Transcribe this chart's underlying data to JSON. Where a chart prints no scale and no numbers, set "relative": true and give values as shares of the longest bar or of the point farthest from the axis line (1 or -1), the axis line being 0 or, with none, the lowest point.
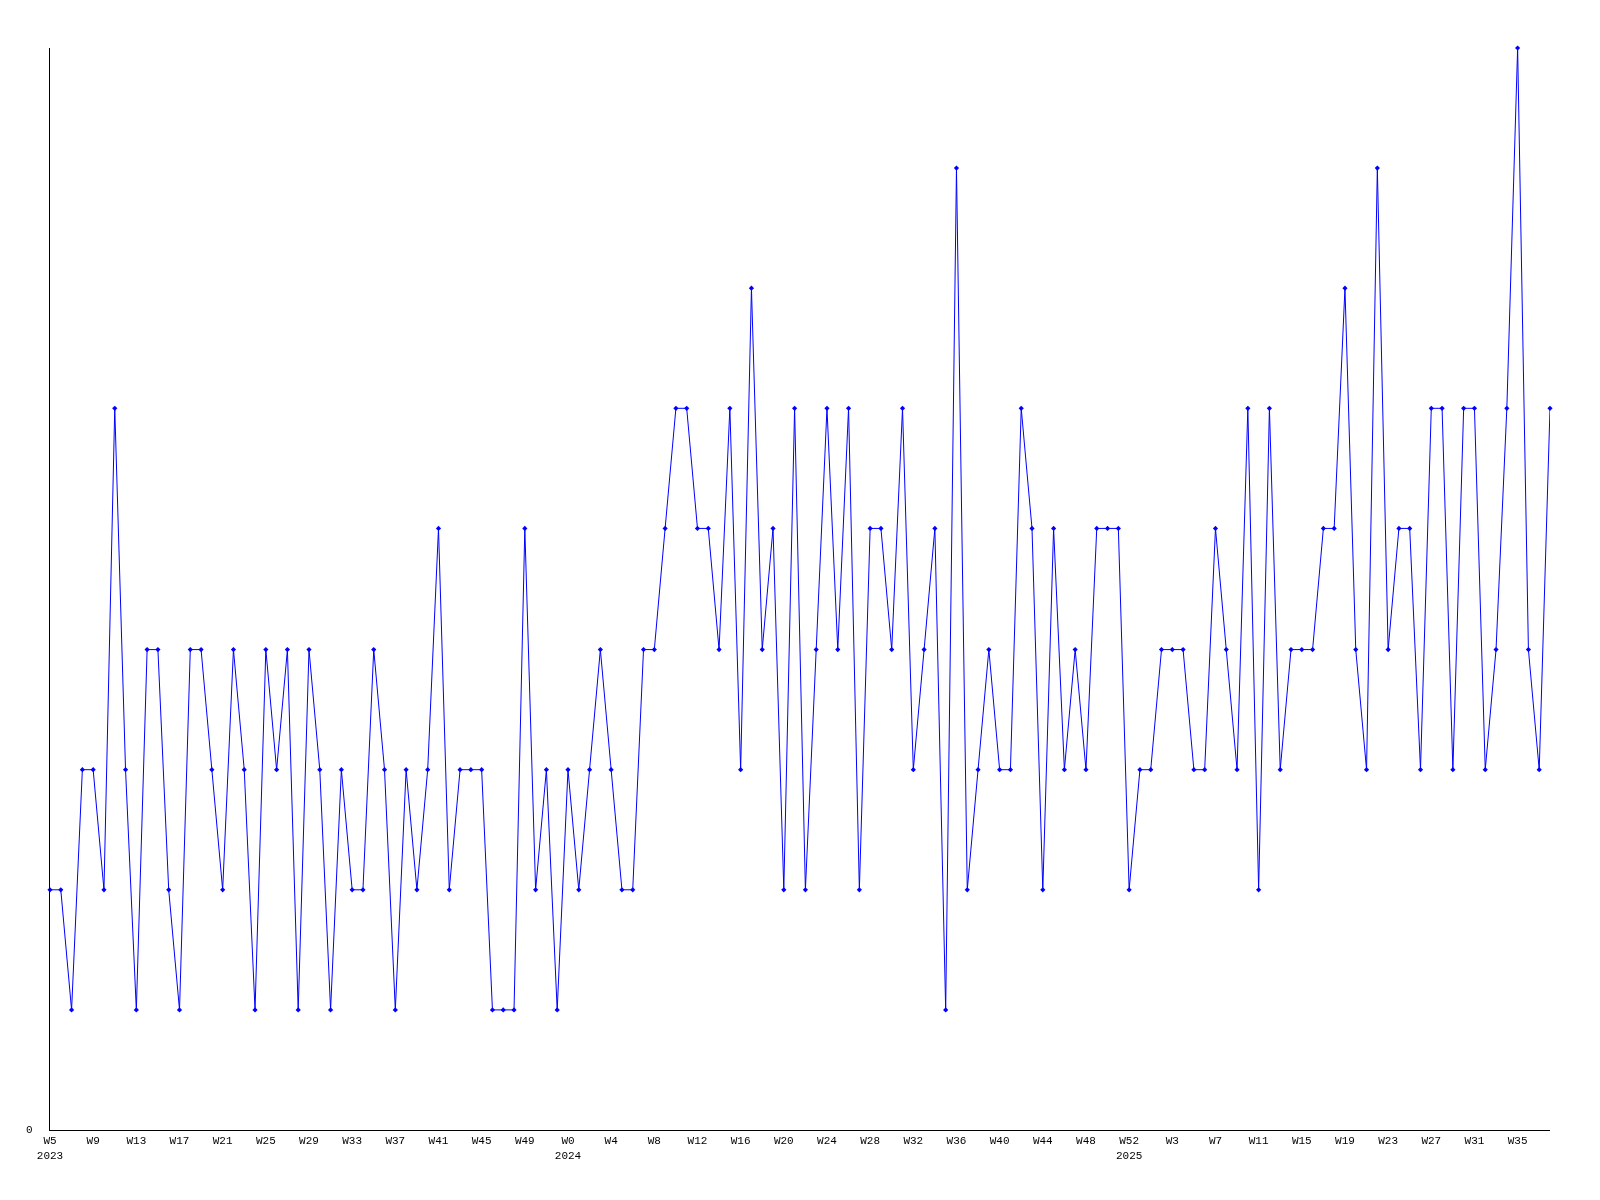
{
  "chart_data": {
    "type": "line",
    "relative": true,
    "marker": "diamond",
    "line_style": "solid",
    "annotations": [
      "0"
    ],
    "categories": [
      "W5\n2023",
      null,
      null,
      null,
      "W9",
      null,
      null,
      null,
      "W13",
      null,
      null,
      null,
      "W17",
      null,
      null,
      null,
      "W21",
      null,
      null,
      null,
      "W25",
      null,
      null,
      null,
      "W29",
      null,
      null,
      null,
      "W33",
      null,
      null,
      null,
      "W37",
      null,
      null,
      null,
      "W41",
      null,
      null,
      null,
      "W45",
      null,
      null,
      null,
      "W49",
      null,
      null,
      null,
      "W0\n2024",
      null,
      null,
      null,
      "W4",
      null,
      null,
      null,
      "W8",
      null,
      null,
      null,
      "W12",
      null,
      null,
      null,
      "W16",
      null,
      null,
      null,
      "W20",
      null,
      null,
      null,
      "W24",
      null,
      null,
      null,
      "W28",
      null,
      null,
      null,
      "W32",
      null,
      null,
      null,
      "W36",
      null,
      null,
      null,
      "W40",
      null,
      null,
      null,
      "W44",
      null,
      null,
      null,
      "W48",
      null,
      null,
      null,
      "W52\n2025",
      null,
      null,
      null,
      "W3",
      null,
      null,
      null,
      "W7",
      null,
      null,
      null,
      "W11",
      null,
      null,
      null,
      "W15",
      null,
      null,
      null,
      "W19",
      null,
      null,
      null,
      "W23",
      null,
      null,
      null,
      "W27",
      null,
      null,
      null,
      "W31",
      null,
      null,
      null,
      "W35",
      null,
      null,
      null
    ],
    "series": [
      {
        "color": "#0000ff",
        "values": [
          0.222,
          0.222,
          0.111,
          0.333,
          0.333,
          0.222,
          0.667,
          0.333,
          0.111,
          0.444,
          0.444,
          0.222,
          0.111,
          0.444,
          0.444,
          0.333,
          0.222,
          0.444,
          0.333,
          0.111,
          0.444,
          0.333,
          0.444,
          0.111,
          0.444,
          0.333,
          0.111,
          0.333,
          0.222,
          0.222,
          0.444,
          0.333,
          0.111,
          0.333,
          0.222,
          0.333,
          0.556,
          0.222,
          0.333,
          0.333,
          0.333,
          0.111,
          0.111,
          0.111,
          0.556,
          0.222,
          0.333,
          0.111,
          0.333,
          0.222,
          0.333,
          0.444,
          0.333,
          0.222,
          0.222,
          0.444,
          0.444,
          0.556,
          0.667,
          0.667,
          0.556,
          0.556,
          0.444,
          0.667,
          0.333,
          0.778,
          0.444,
          0.556,
          0.222,
          0.667,
          0.222,
          0.444,
          0.667,
          0.444,
          0.667,
          0.222,
          0.556,
          0.556,
          0.444,
          0.667,
          0.333,
          0.444,
          0.556,
          0.111,
          0.889,
          0.222,
          0.333,
          0.444,
          0.333,
          0.333,
          0.667,
          0.556,
          0.222,
          0.556,
          0.333,
          0.444,
          0.333,
          0.556,
          0.556,
          0.556,
          0.222,
          0.333,
          0.333,
          0.444,
          0.444,
          0.444,
          0.333,
          0.333,
          0.556,
          0.444,
          0.333,
          0.667,
          0.222,
          0.667,
          0.333,
          0.444,
          0.444,
          0.444,
          0.556,
          0.556,
          0.778,
          0.444,
          0.333,
          0.889,
          0.444,
          0.556,
          0.556,
          0.333,
          0.667,
          0.667,
          0.333,
          0.667,
          0.667,
          0.333,
          0.444,
          0.667,
          1,
          0.444,
          0.333,
          0.667
        ]
      }
    ]
  }
}
